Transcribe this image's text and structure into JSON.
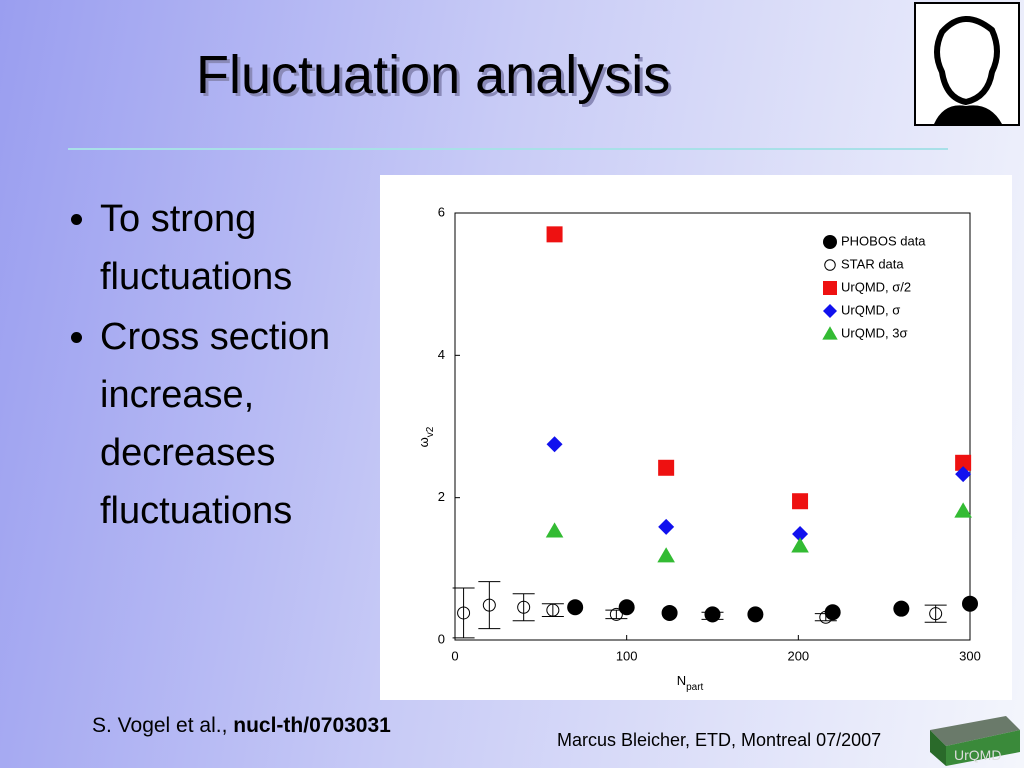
{
  "slide": {
    "title": "Fluctuation analysis",
    "bullets": [
      "To strong fluctuations",
      "Cross section increase, decreases fluctuations"
    ],
    "citation_prefix": "S. Vogel et al., ",
    "citation_ref": "nucl-th/0703031",
    "footer": "Marcus Bleicher, ETD, Montreal 07/2007"
  },
  "chart_data": {
    "type": "scatter",
    "xlabel": "N",
    "xlabel_sub": "part",
    "ylabel": "ω",
    "ylabel_sub": "v2",
    "xlim": [
      0,
      300
    ],
    "ylim": [
      0,
      6
    ],
    "xticks": [
      0,
      100,
      200,
      300
    ],
    "yticks": [
      0,
      2,
      4,
      6
    ],
    "legend": "upper right",
    "series": [
      {
        "name": "PHOBOS data",
        "color": "#000000",
        "marker": "circle",
        "x": [
          70,
          100,
          125,
          150,
          175,
          220,
          260,
          300
        ],
        "values": [
          0.46,
          0.46,
          0.38,
          0.36,
          0.36,
          0.39,
          0.44,
          0.51
        ]
      },
      {
        "name": "STAR data",
        "color": "#000000",
        "marker": "open-circle",
        "x": [
          5,
          20,
          40,
          57,
          94,
          150,
          216,
          280
        ],
        "values": [
          0.38,
          0.49,
          0.46,
          0.42,
          0.36,
          0.34,
          0.32,
          0.37
        ],
        "errors": [
          0.35,
          0.33,
          0.19,
          0.09,
          0.06,
          0.05,
          0.05,
          0.12
        ]
      },
      {
        "name": "UrQMD, σ/2",
        "color": "#ee1111",
        "marker": "square",
        "x": [
          58,
          123,
          201,
          296
        ],
        "values": [
          5.7,
          2.42,
          1.95,
          2.49
        ]
      },
      {
        "name": "UrQMD, σ",
        "color": "#1111ee",
        "marker": "diamond",
        "x": [
          58,
          123,
          201,
          296
        ],
        "values": [
          2.75,
          1.59,
          1.49,
          2.33
        ]
      },
      {
        "name": "UrQMD, 3σ",
        "color": "#33bb33",
        "marker": "triangle",
        "x": [
          58,
          123,
          201,
          296
        ],
        "values": [
          1.53,
          1.18,
          1.32,
          1.81
        ]
      }
    ]
  }
}
